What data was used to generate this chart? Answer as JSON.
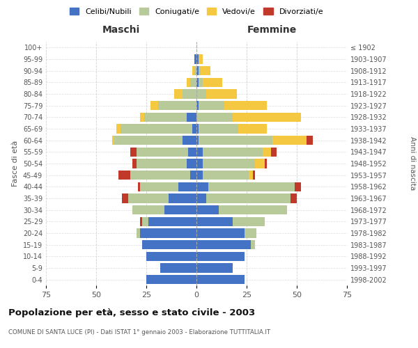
{
  "age_groups": [
    "0-4",
    "5-9",
    "10-14",
    "15-19",
    "20-24",
    "25-29",
    "30-34",
    "35-39",
    "40-44",
    "45-49",
    "50-54",
    "55-59",
    "60-64",
    "65-69",
    "70-74",
    "75-79",
    "80-84",
    "85-89",
    "90-94",
    "95-99",
    "100+"
  ],
  "birth_years": [
    "1998-2002",
    "1993-1997",
    "1988-1992",
    "1983-1987",
    "1978-1982",
    "1973-1977",
    "1968-1972",
    "1963-1967",
    "1958-1962",
    "1953-1957",
    "1948-1952",
    "1943-1947",
    "1938-1942",
    "1933-1937",
    "1928-1932",
    "1923-1927",
    "1918-1922",
    "1913-1917",
    "1908-1912",
    "1903-1907",
    "≤ 1902"
  ],
  "males": {
    "celibi": [
      25,
      18,
      25,
      27,
      28,
      24,
      16,
      14,
      9,
      3,
      5,
      4,
      7,
      2,
      5,
      0,
      0,
      0,
      0,
      1,
      0
    ],
    "coniugati": [
      0,
      0,
      0,
      0,
      2,
      3,
      16,
      20,
      19,
      30,
      25,
      26,
      34,
      36,
      21,
      19,
      7,
      3,
      1,
      0,
      0
    ],
    "vedovi": [
      0,
      0,
      0,
      0,
      0,
      0,
      0,
      0,
      0,
      0,
      0,
      0,
      1,
      2,
      2,
      4,
      4,
      2,
      1,
      0,
      0
    ],
    "divorziati": [
      0,
      0,
      0,
      0,
      0,
      1,
      0,
      3,
      1,
      6,
      2,
      3,
      0,
      0,
      0,
      0,
      0,
      0,
      0,
      0,
      0
    ]
  },
  "females": {
    "nubili": [
      24,
      18,
      24,
      27,
      24,
      18,
      11,
      5,
      6,
      3,
      3,
      3,
      1,
      1,
      0,
      1,
      0,
      1,
      1,
      1,
      0
    ],
    "coniugate": [
      0,
      0,
      0,
      2,
      6,
      16,
      34,
      42,
      43,
      23,
      26,
      30,
      37,
      20,
      18,
      13,
      5,
      2,
      1,
      0,
      0
    ],
    "vedove": [
      0,
      0,
      0,
      0,
      0,
      0,
      0,
      0,
      0,
      2,
      5,
      4,
      17,
      14,
      34,
      21,
      15,
      10,
      5,
      2,
      0
    ],
    "divorziate": [
      0,
      0,
      0,
      0,
      0,
      0,
      0,
      3,
      3,
      1,
      1,
      3,
      3,
      0,
      0,
      0,
      0,
      0,
      0,
      0,
      0
    ]
  },
  "colors": {
    "celibi_nubili": "#4472c4",
    "coniugati_e": "#b8c99a",
    "vedovi_e": "#f5c842",
    "divorziati_e": "#c0392b"
  },
  "xlim": 75,
  "title": "Popolazione per età, sesso e stato civile - 2003",
  "subtitle": "COMUNE DI SANTA LUCE (PI) - Dati ISTAT 1° gennaio 2003 - Elaborazione TUTTITALIA.IT",
  "ylabel_left": "Fasce di età",
  "ylabel_right": "Anni di nascita",
  "xlabel_left": "Maschi",
  "xlabel_right": "Femmine",
  "background_color": "#ffffff",
  "grid_color": "#cccccc"
}
